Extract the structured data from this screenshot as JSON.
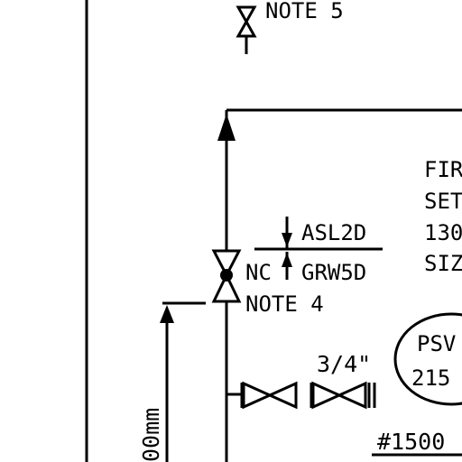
{
  "colors": {
    "ink": "#000000",
    "paper": "#ffffff"
  },
  "notes": {
    "top": "NOTE 5",
    "valve": "NOTE 4"
  },
  "tags": {
    "normally_closed": "NC",
    "upper": "ASL2D",
    "lower": "GRW5D"
  },
  "spec_text": [
    "FIR",
    "SET",
    "130",
    "SIZ"
  ],
  "psv": {
    "line1": "PSV",
    "line2": "215"
  },
  "pipe_size": "3/4\"",
  "rating": "#1500 -",
  "dimension": "00mm"
}
